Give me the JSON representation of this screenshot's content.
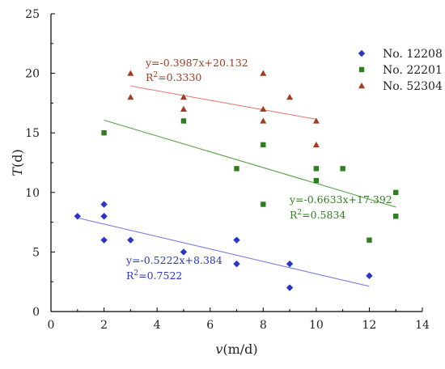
{
  "chart_data": {
    "type": "scatter",
    "xlabel_var": "v",
    "xlabel_unit": "(m/d)",
    "ylabel_var": "T",
    "ylabel_unit": "(d)",
    "xlim": [
      0,
      14
    ],
    "ylim": [
      0,
      25
    ],
    "xticks": [
      "0",
      "2",
      "4",
      "6",
      "8",
      "10",
      "12",
      "14"
    ],
    "yticks": [
      "0",
      "5",
      "10",
      "15",
      "20",
      "25"
    ],
    "grid": false,
    "legend_position": "top-right",
    "series": [
      {
        "name": "No. 12208",
        "color": "#2a35c8",
        "marker": "diamond",
        "points": [
          [
            1,
            8
          ],
          [
            2,
            9
          ],
          [
            2,
            8
          ],
          [
            2,
            6
          ],
          [
            3,
            6
          ],
          [
            5,
            5
          ],
          [
            7,
            6
          ],
          [
            7,
            4
          ],
          [
            9,
            4
          ],
          [
            9,
            2
          ],
          [
            12,
            3
          ]
        ],
        "fit": {
          "slope": -0.5222,
          "intercept": 8.384,
          "x_range": [
            1,
            12
          ],
          "equation": "y=-0.5222x+8.384",
          "r2_prefix": "R",
          "r2_sup": "2",
          "r2_value": "=0.7522",
          "line_color": "#7b7ddd"
        }
      },
      {
        "name": "No. 22201",
        "color": "#2e7d1f",
        "marker": "square",
        "points": [
          [
            2,
            15
          ],
          [
            5,
            16
          ],
          [
            7,
            12
          ],
          [
            8,
            14
          ],
          [
            8,
            9
          ],
          [
            10,
            12
          ],
          [
            10,
            11
          ],
          [
            11,
            12
          ],
          [
            12,
            6
          ],
          [
            13,
            10
          ],
          [
            13,
            8
          ]
        ],
        "fit": {
          "slope": -0.6633,
          "intercept": 17.392,
          "x_range": [
            2,
            13
          ],
          "equation": "y=-0.6633x+17.392",
          "r2_prefix": "R",
          "r2_sup": "2",
          "r2_value": "=0.5834",
          "line_color": "#5aa34b"
        }
      },
      {
        "name": "No. 52304",
        "color": "#a33a22",
        "marker": "triangle",
        "points": [
          [
            3,
            20
          ],
          [
            3,
            18
          ],
          [
            5,
            18
          ],
          [
            5,
            17
          ],
          [
            8,
            20
          ],
          [
            8,
            17
          ],
          [
            8,
            16
          ],
          [
            9,
            18
          ],
          [
            10,
            16
          ],
          [
            10,
            14
          ]
        ],
        "fit": {
          "slope": -0.3987,
          "intercept": 20.132,
          "x_range": [
            3,
            10
          ],
          "equation": "y=-0.3987x+20.132",
          "r2_prefix": "R",
          "r2_sup": "2",
          "r2_value": "=0.3330",
          "line_color": "#e07f72"
        }
      }
    ]
  }
}
